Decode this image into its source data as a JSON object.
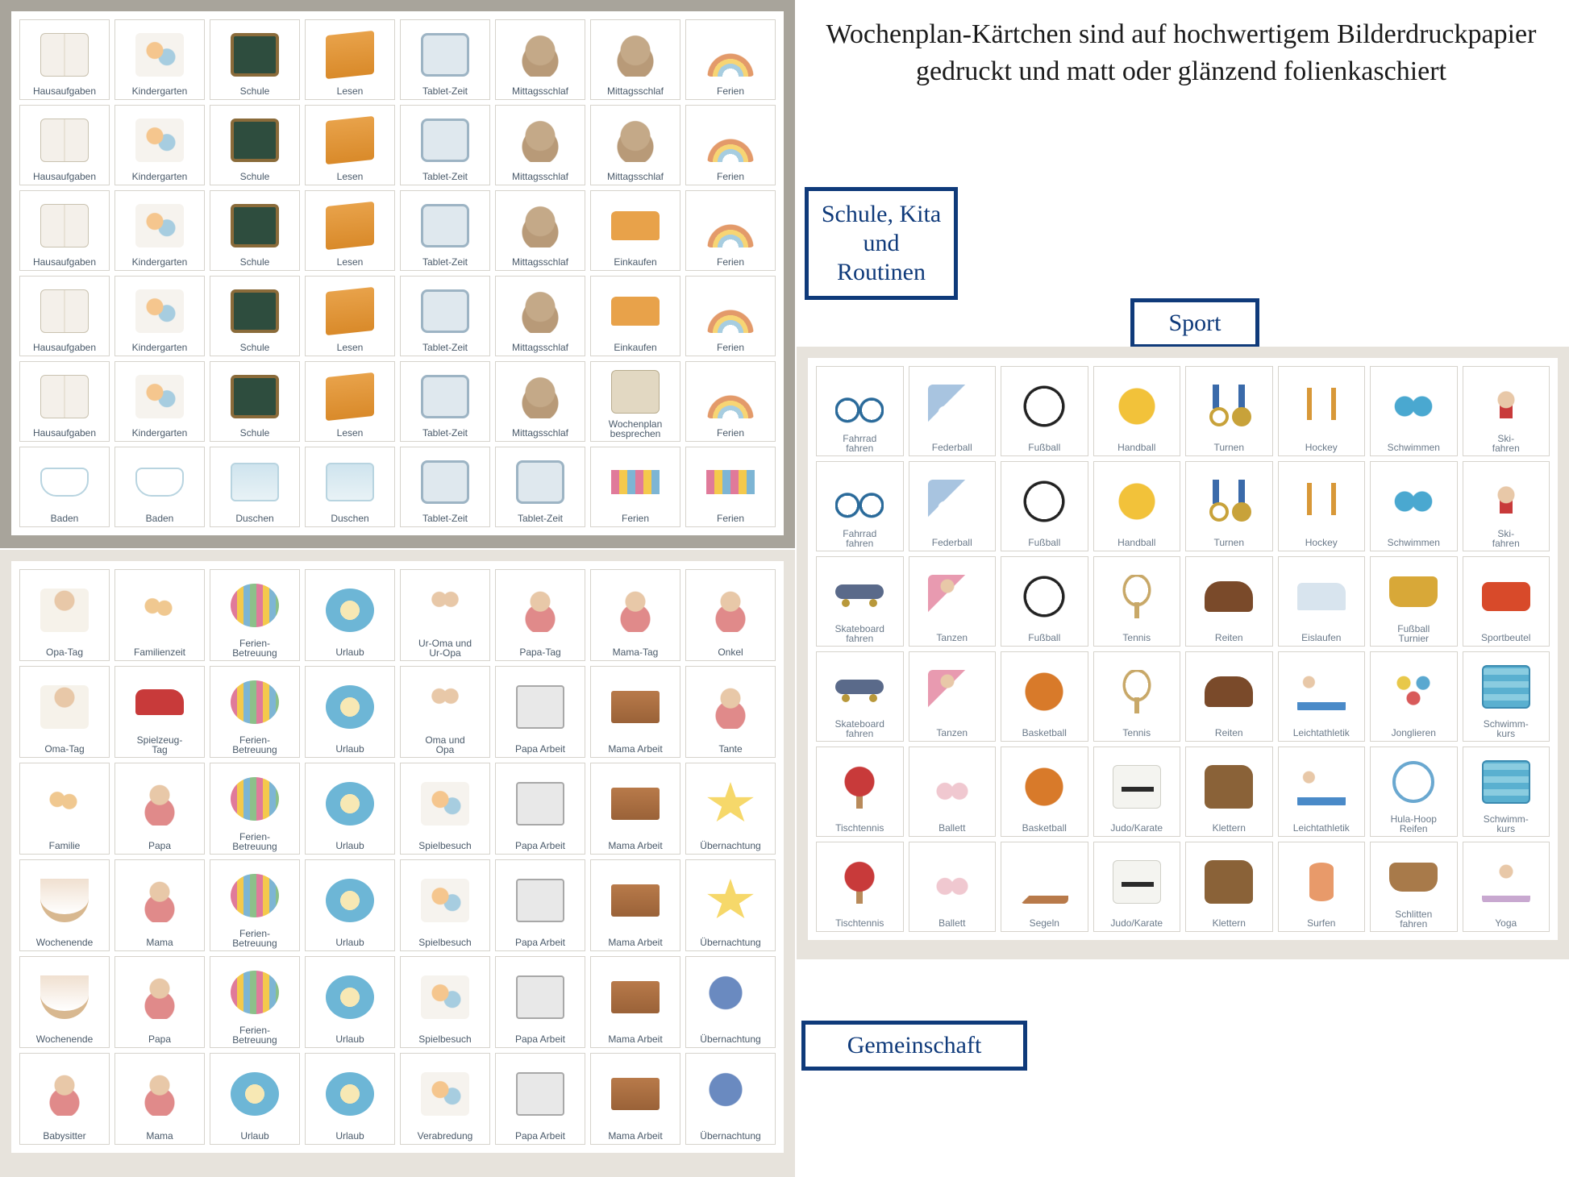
{
  "heading": "Wochenplan-Kärtchen sind auf\nhochwertigem Bilderdruckpapier\ngedruckt und matt oder glänzend\nfolienkaschiert",
  "labels": {
    "schule": "Schule,\nKita und\nRoutinen",
    "sport": "Sport",
    "gemeinschaft": "Gemeinschaft"
  },
  "colors": {
    "border_box": "#0f3a7a",
    "panel_dark": "#a8a49b",
    "panel_light": "#e7e3dc",
    "card_border": "#d6d3cc",
    "label_text": "#4a5a6a"
  },
  "sheet_tl": {
    "cols": 8,
    "rows": 6,
    "cards": [
      {
        "l": "Hausaufgaben",
        "i": "book"
      },
      {
        "l": "Kindergarten",
        "i": "kids"
      },
      {
        "l": "Schule",
        "i": "board"
      },
      {
        "l": "Lesen",
        "i": "lesen"
      },
      {
        "l": "Tablet-Zeit",
        "i": "tablet"
      },
      {
        "l": "Mittagsschlaf",
        "i": "sloth"
      },
      {
        "l": "Mittagsschlaf",
        "i": "sloth"
      },
      {
        "l": "Ferien",
        "i": "rainbow"
      },
      {
        "l": "Hausaufgaben",
        "i": "book"
      },
      {
        "l": "Kindergarten",
        "i": "kids"
      },
      {
        "l": "Schule",
        "i": "board"
      },
      {
        "l": "Lesen",
        "i": "lesen"
      },
      {
        "l": "Tablet-Zeit",
        "i": "tablet"
      },
      {
        "l": "Mittagsschlaf",
        "i": "sloth"
      },
      {
        "l": "Mittagsschlaf",
        "i": "sloth"
      },
      {
        "l": "Ferien",
        "i": "rainbow"
      },
      {
        "l": "Hausaufgaben",
        "i": "book"
      },
      {
        "l": "Kindergarten",
        "i": "kids"
      },
      {
        "l": "Schule",
        "i": "board"
      },
      {
        "l": "Lesen",
        "i": "lesen"
      },
      {
        "l": "Tablet-Zeit",
        "i": "tablet"
      },
      {
        "l": "Mittagsschlaf",
        "i": "sloth"
      },
      {
        "l": "Einkaufen",
        "i": "basket"
      },
      {
        "l": "Ferien",
        "i": "rainbow"
      },
      {
        "l": "Hausaufgaben",
        "i": "book"
      },
      {
        "l": "Kindergarten",
        "i": "kids"
      },
      {
        "l": "Schule",
        "i": "board"
      },
      {
        "l": "Lesen",
        "i": "lesen"
      },
      {
        "l": "Tablet-Zeit",
        "i": "tablet"
      },
      {
        "l": "Mittagsschlaf",
        "i": "sloth"
      },
      {
        "l": "Einkaufen",
        "i": "basket"
      },
      {
        "l": "Ferien",
        "i": "rainbow"
      },
      {
        "l": "Hausaufgaben",
        "i": "book"
      },
      {
        "l": "Kindergarten",
        "i": "kids"
      },
      {
        "l": "Schule",
        "i": "board"
      },
      {
        "l": "Lesen",
        "i": "lesen"
      },
      {
        "l": "Tablet-Zeit",
        "i": "tablet"
      },
      {
        "l": "Mittagsschlaf",
        "i": "sloth"
      },
      {
        "l": "Wochenplan\nbesprechen",
        "i": "plan"
      },
      {
        "l": "Ferien",
        "i": "rainbow"
      },
      {
        "l": "Baden",
        "i": "bath"
      },
      {
        "l": "Baden",
        "i": "bath"
      },
      {
        "l": "Duschen",
        "i": "shower"
      },
      {
        "l": "Duschen",
        "i": "shower"
      },
      {
        "l": "Tablet-Zeit",
        "i": "tablet"
      },
      {
        "l": "Tablet-Zeit",
        "i": "tablet"
      },
      {
        "l": "Ferien",
        "i": "bunting"
      },
      {
        "l": "Ferien",
        "i": "bunting"
      }
    ]
  },
  "sheet_bl": {
    "cols": 8,
    "rows": 6,
    "cards": [
      {
        "l": "Opa-Tag",
        "i": "opa"
      },
      {
        "l": "Familienzeit",
        "i": "famzeit"
      },
      {
        "l": "Ferien-\nBetreuung",
        "i": "paint"
      },
      {
        "l": "Urlaub",
        "i": "beach"
      },
      {
        "l": "Ur-Oma und\nUr-Opa",
        "i": "grand"
      },
      {
        "l": "Papa-Tag",
        "i": "person"
      },
      {
        "l": "Mama-Tag",
        "i": "person"
      },
      {
        "l": "Onkel",
        "i": "person"
      },
      {
        "l": "Oma-Tag",
        "i": "opa"
      },
      {
        "l": "Spielzeug-\nTag",
        "i": "car"
      },
      {
        "l": "Ferien-\nBetreuung",
        "i": "paint"
      },
      {
        "l": "Urlaub",
        "i": "beach"
      },
      {
        "l": "Oma und\nOpa",
        "i": "grand"
      },
      {
        "l": "Papa Arbeit",
        "i": "laptop"
      },
      {
        "l": "Mama Arbeit",
        "i": "desk"
      },
      {
        "l": "Tante",
        "i": "person"
      },
      {
        "l": "Familie",
        "i": "famzeit"
      },
      {
        "l": "Papa",
        "i": "person"
      },
      {
        "l": "Ferien-\nBetreuung",
        "i": "paint"
      },
      {
        "l": "Urlaub",
        "i": "beach"
      },
      {
        "l": "Spielbesuch",
        "i": "kids"
      },
      {
        "l": "Papa Arbeit",
        "i": "laptop"
      },
      {
        "l": "Mama Arbeit",
        "i": "desk"
      },
      {
        "l": "Übernachtung",
        "i": "star"
      },
      {
        "l": "Wochenende",
        "i": "hammock"
      },
      {
        "l": "Mama",
        "i": "person"
      },
      {
        "l": "Ferien-\nBetreuung",
        "i": "paint"
      },
      {
        "l": "Urlaub",
        "i": "beach"
      },
      {
        "l": "Spielbesuch",
        "i": "kids"
      },
      {
        "l": "Papa Arbeit",
        "i": "laptop"
      },
      {
        "l": "Mama Arbeit",
        "i": "desk"
      },
      {
        "l": "Übernachtung",
        "i": "star"
      },
      {
        "l": "Wochenende",
        "i": "hammock"
      },
      {
        "l": "Papa",
        "i": "person"
      },
      {
        "l": "Ferien-\nBetreuung",
        "i": "paint"
      },
      {
        "l": "Urlaub",
        "i": "beach"
      },
      {
        "l": "Spielbesuch",
        "i": "kids"
      },
      {
        "l": "Papa Arbeit",
        "i": "laptop"
      },
      {
        "l": "Mama Arbeit",
        "i": "desk"
      },
      {
        "l": "Übernachtung",
        "i": "moon"
      },
      {
        "l": "Babysitter",
        "i": "person"
      },
      {
        "l": "Mama",
        "i": "person"
      },
      {
        "l": "Urlaub",
        "i": "beach"
      },
      {
        "l": "Urlaub",
        "i": "beach"
      },
      {
        "l": "Verabredung",
        "i": "kids"
      },
      {
        "l": "Papa Arbeit",
        "i": "laptop"
      },
      {
        "l": "Mama Arbeit",
        "i": "desk"
      },
      {
        "l": "Übernachtung",
        "i": "moon"
      }
    ]
  },
  "sheet_r": {
    "cols": 8,
    "rows": 6,
    "cards": [
      {
        "l": "Fahrrad\nfahren",
        "i": "bike"
      },
      {
        "l": "Federball",
        "i": "shuttle"
      },
      {
        "l": "Fußball",
        "i": "soccer"
      },
      {
        "l": "Handball",
        "i": "vball"
      },
      {
        "l": "Turnen",
        "i": "rings"
      },
      {
        "l": "Hockey",
        "i": "hockey"
      },
      {
        "l": "Schwimmen",
        "i": "goggle"
      },
      {
        "l": "Ski-\nfahren",
        "i": "ski"
      },
      {
        "l": "Fahrrad\nfahren",
        "i": "bike"
      },
      {
        "l": "Federball",
        "i": "shuttle"
      },
      {
        "l": "Fußball",
        "i": "soccer"
      },
      {
        "l": "Handball",
        "i": "vball"
      },
      {
        "l": "Turnen",
        "i": "rings"
      },
      {
        "l": "Hockey",
        "i": "hockey"
      },
      {
        "l": "Schwimmen",
        "i": "goggle"
      },
      {
        "l": "Ski-\nfahren",
        "i": "ski"
      },
      {
        "l": "Skateboard\nfahren",
        "i": "skate"
      },
      {
        "l": "Tanzen",
        "i": "dance"
      },
      {
        "l": "Fußball",
        "i": "soccer"
      },
      {
        "l": "Tennis",
        "i": "tennis"
      },
      {
        "l": "Reiten",
        "i": "saddle"
      },
      {
        "l": "Eislaufen",
        "i": "iceskate"
      },
      {
        "l": "Fußball\nTurnier",
        "i": "troph"
      },
      {
        "l": "Sportbeutel",
        "i": "bag"
      },
      {
        "l": "Skateboard\nfahren",
        "i": "skate"
      },
      {
        "l": "Tanzen",
        "i": "dance"
      },
      {
        "l": "Basketball",
        "i": "bball"
      },
      {
        "l": "Tennis",
        "i": "tennis"
      },
      {
        "l": "Reiten",
        "i": "saddle"
      },
      {
        "l": "Leichtathletik",
        "i": "plank"
      },
      {
        "l": "Jonglieren",
        "i": "juggle"
      },
      {
        "l": "Schwimm-\nkurs",
        "i": "pool"
      },
      {
        "l": "Tischtennis",
        "i": "ping"
      },
      {
        "l": "Ballett",
        "i": "ballet"
      },
      {
        "l": "Basketball",
        "i": "bball"
      },
      {
        "l": "Judo/Karate",
        "i": "gi"
      },
      {
        "l": "Klettern",
        "i": "climb"
      },
      {
        "l": "Leichtathletik",
        "i": "plank"
      },
      {
        "l": "Hula-Hoop\nReifen",
        "i": "hoop"
      },
      {
        "l": "Schwimm-\nkurs",
        "i": "pool"
      },
      {
        "l": "Tischtennis",
        "i": "ping"
      },
      {
        "l": "Ballett",
        "i": "ballet"
      },
      {
        "l": "Segeln",
        "i": "sail"
      },
      {
        "l": "Judo/Karate",
        "i": "gi"
      },
      {
        "l": "Klettern",
        "i": "climb"
      },
      {
        "l": "Surfen",
        "i": "surf"
      },
      {
        "l": "Schlitten\nfahren",
        "i": "sled"
      },
      {
        "l": "Yoga",
        "i": "yoga"
      }
    ]
  }
}
